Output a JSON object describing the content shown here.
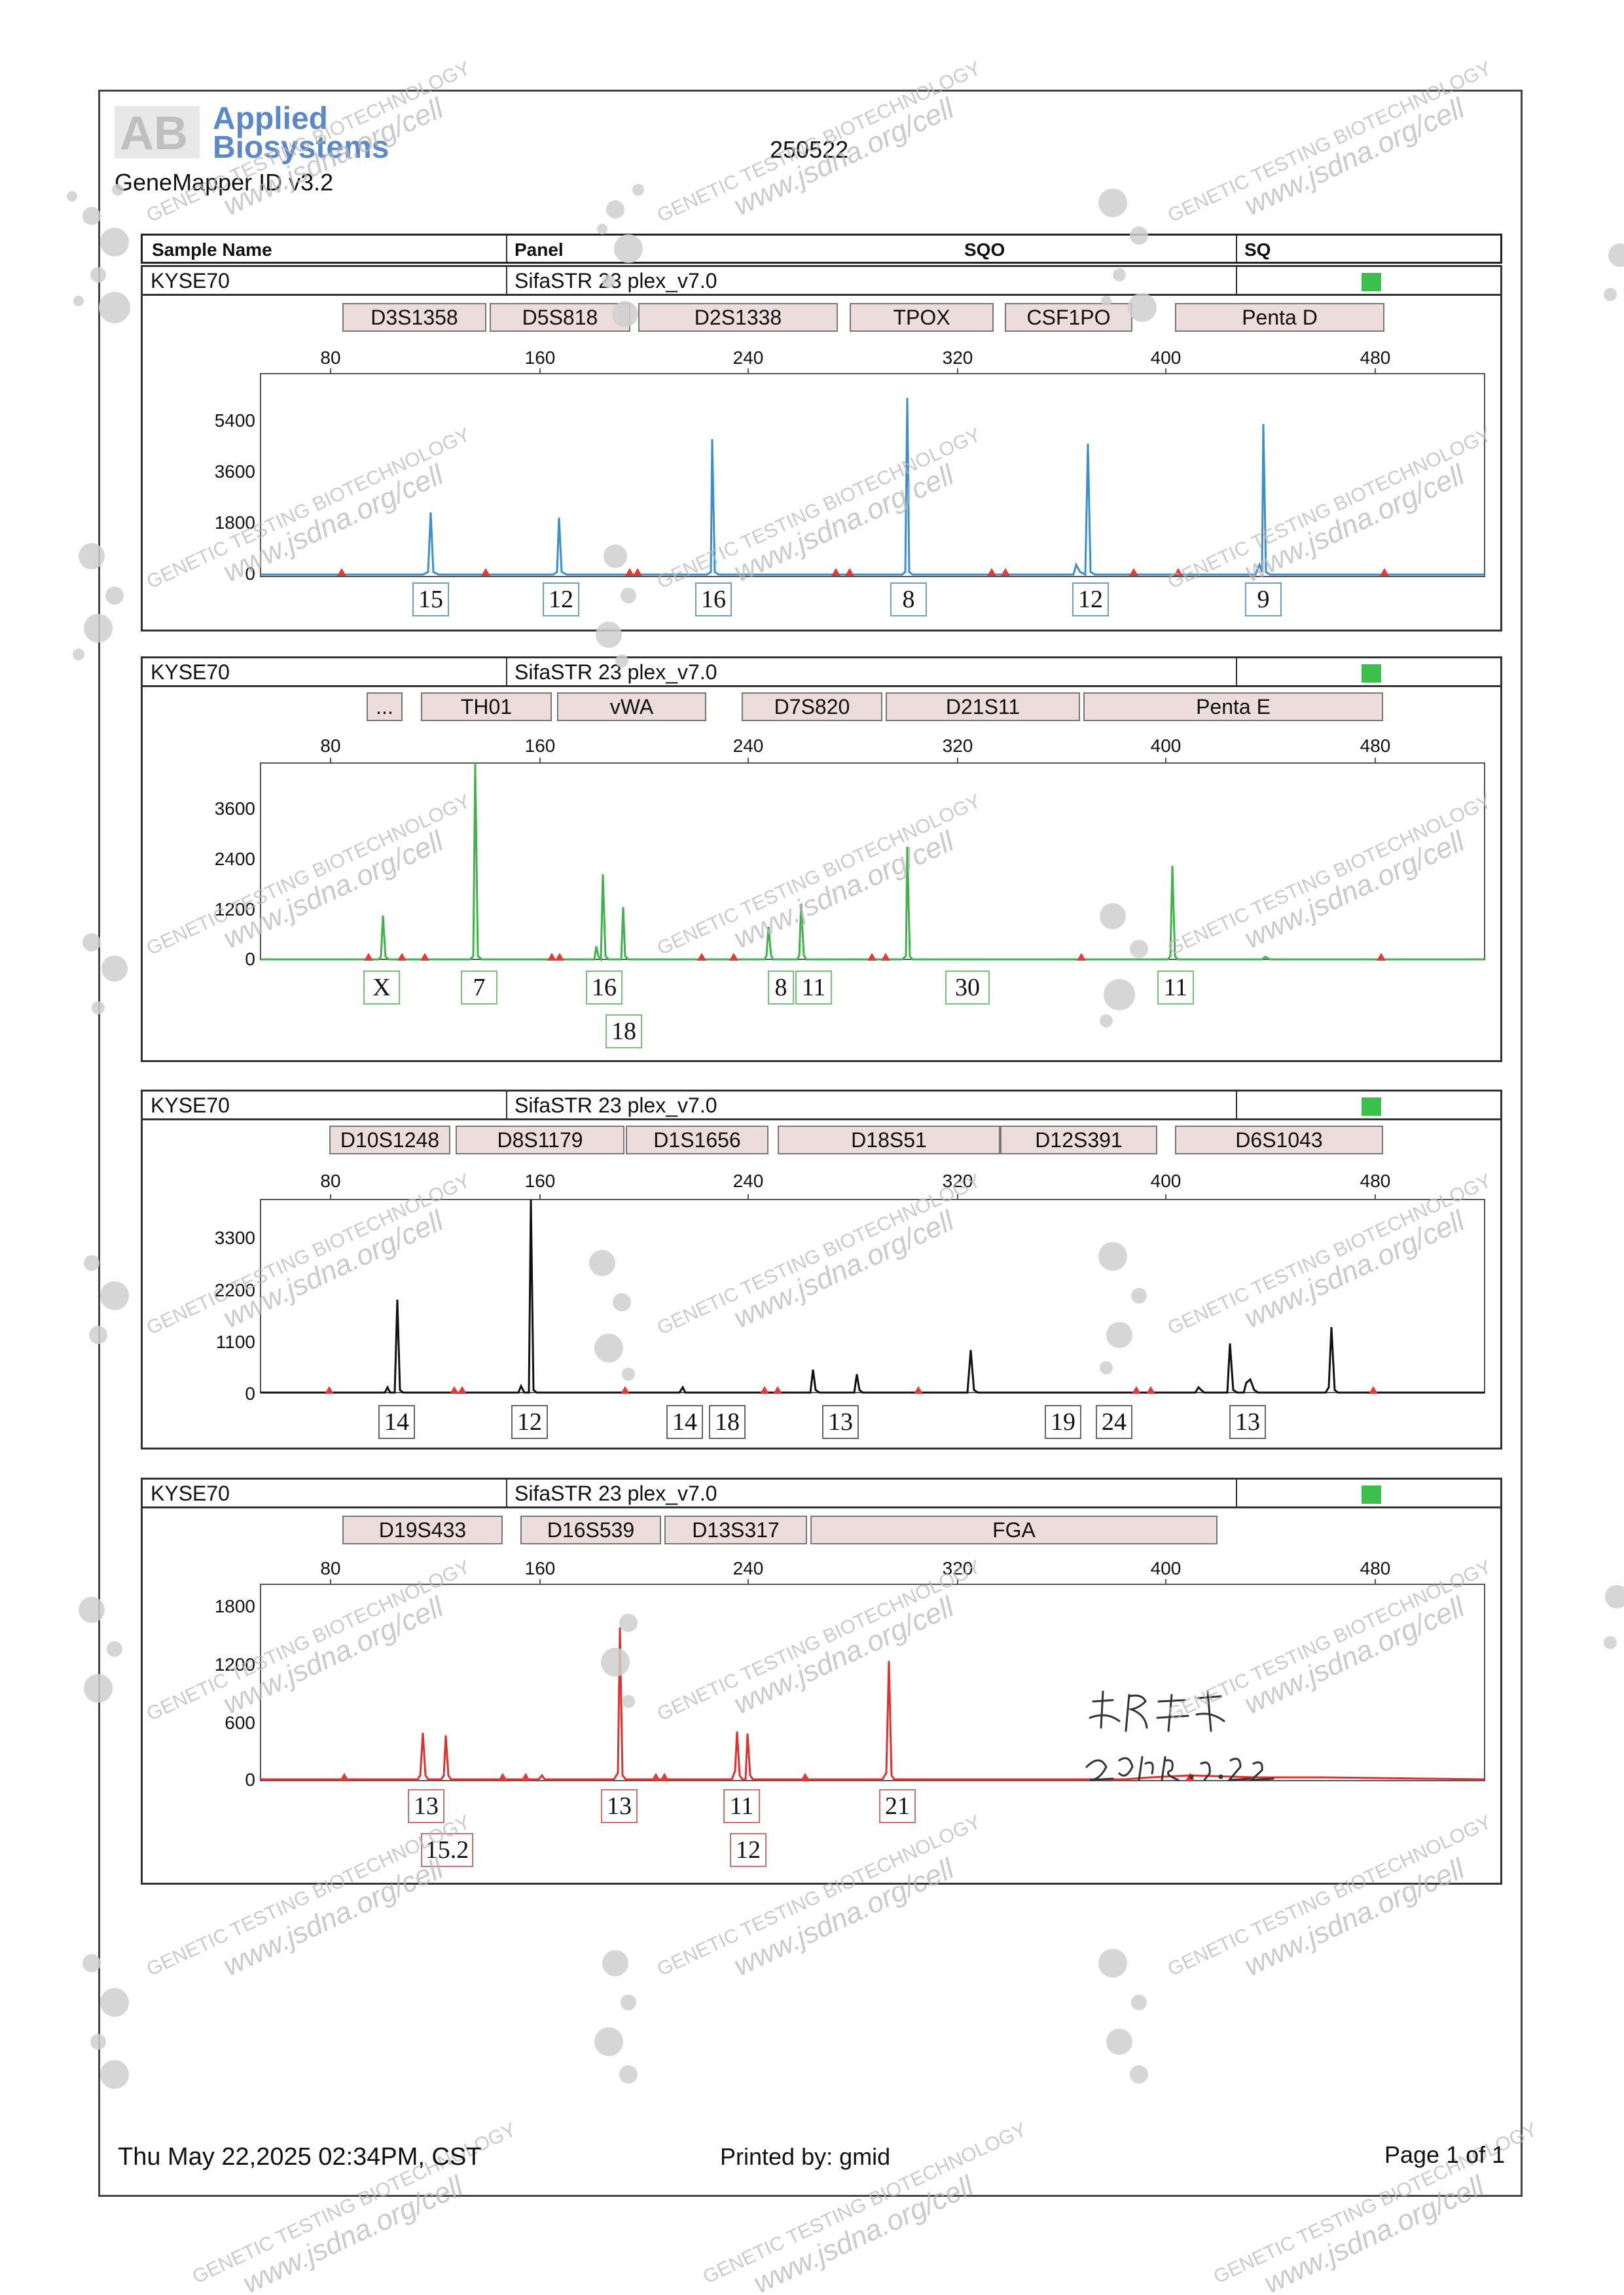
{
  "header": {
    "logo_line1": "Applied",
    "logo_line2": "Biosystems",
    "software": "GeneMapper ID v3.2",
    "run_id": "250522"
  },
  "columns": {
    "sample_name": "Sample Name",
    "panel": "Panel",
    "sqo": "SQO",
    "sq": "SQ"
  },
  "qc_color": "#3cc04c",
  "axis_ticks": [
    "80",
    "160",
    "240",
    "320",
    "400",
    "480"
  ],
  "panels": [
    {
      "sample": "KYSE70",
      "panel_name": "SifaSTR 23 plex_v7.0",
      "dye_color": "#3a8fd0",
      "y_ticks": [
        "5400",
        "3600",
        "1800",
        "0"
      ],
      "loci": [
        "D3S1358",
        "D5S818",
        "D2S1338",
        "TPOX",
        "CSF1PO",
        "Penta D"
      ],
      "alleles": [
        "15",
        "12",
        "16",
        "8",
        "12",
        "9"
      ]
    },
    {
      "sample": "KYSE70",
      "panel_name": "SifaSTR 23 plex_v7.0",
      "dye_color": "#3fb24a",
      "y_ticks": [
        "3600",
        "2400",
        "1200",
        "0"
      ],
      "loci": [
        "...",
        "TH01",
        "vWA",
        "D7S820",
        "D21S11",
        "Penta E"
      ],
      "alleles": [
        "X",
        "7",
        "16",
        "18",
        "8",
        "11",
        "30",
        "11"
      ]
    },
    {
      "sample": "KYSE70",
      "panel_name": "SifaSTR 23 plex_v7.0",
      "dye_color": "#111111",
      "y_ticks": [
        "3300",
        "2200",
        "1100",
        "0"
      ],
      "loci": [
        "D10S1248",
        "D8S1179",
        "D1S1656",
        "D18S51",
        "D12S391",
        "D6S1043"
      ],
      "alleles": [
        "14",
        "12",
        "14",
        "18",
        "13",
        "19",
        "24",
        "13"
      ]
    },
    {
      "sample": "KYSE70",
      "panel_name": "SifaSTR 23 plex_v7.0",
      "dye_color": "#e03030",
      "y_ticks": [
        "1800",
        "1200",
        "600",
        "0"
      ],
      "loci": [
        "D19S433",
        "D16S539",
        "D13S317",
        "FGA"
      ],
      "alleles": [
        "13",
        "15.2",
        "13",
        "11",
        "12",
        "21"
      ]
    }
  ],
  "footer": {
    "datetime": "Thu May 22,2025 02:34PM, CST",
    "printed_by": "Printed by: gmid",
    "page": "Page 1 of 1"
  },
  "watermark": {
    "line1": "GENETIC TESTING BIOTECHNOLOGY",
    "line2": "www.jsdna.org/cell"
  }
}
